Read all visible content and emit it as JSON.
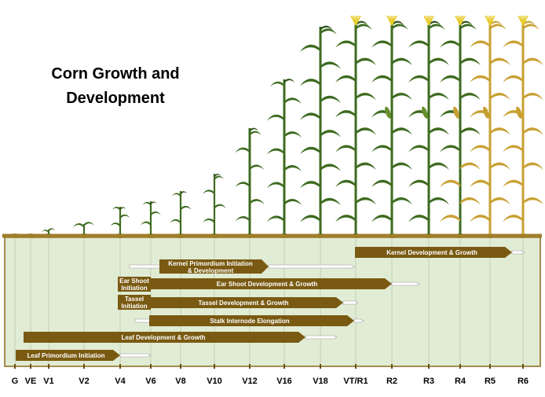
{
  "title_line1": "Corn Growth and",
  "title_line2": "Development",
  "colors": {
    "bar": "#7a5a12",
    "panel": "#e1ecd5",
    "soil": "#a07d2a",
    "leaf": "#3d6b1f",
    "leaf_dark": "#2f5218",
    "dry": "#c8a032",
    "tassel": "#e8cc30"
  },
  "stages": [
    "G",
    "VE",
    "V1",
    "V2",
    "V4",
    "V6",
    "V8",
    "V10",
    "V12",
    "V16",
    "V18",
    "VT/R1",
    "R2",
    "R3",
    "R4",
    "R5",
    "R6"
  ],
  "processes": [
    {
      "label": "Kernel Development & Growth",
      "start": "VT/R1",
      "end": "R6"
    },
    {
      "label_lines": [
        "Kernel Primordium Initiation",
        "& Development"
      ],
      "start": "V4",
      "end": "VT/R1"
    },
    {
      "label_lines": [
        "Ear Shoot",
        "Initiation"
      ],
      "start": "V4",
      "end": "V6"
    },
    {
      "label": "Ear Shoot Development & Growth",
      "start": "V6",
      "end": "R2"
    },
    {
      "label_lines": [
        "Tassel",
        "Initiation"
      ],
      "start": "V4",
      "end": "V6"
    },
    {
      "label": "Tassel Development & Growth",
      "start": "V6",
      "end": "V18"
    },
    {
      "label": "Stalk Internode Elongation",
      "start": "V6",
      "end": "VT/R1"
    },
    {
      "label": "Leaf Development & Growth",
      "start": "VE",
      "end": "V18"
    },
    {
      "label": "Leaf Primordium Initiation",
      "start": "G",
      "end": "V4"
    }
  ]
}
